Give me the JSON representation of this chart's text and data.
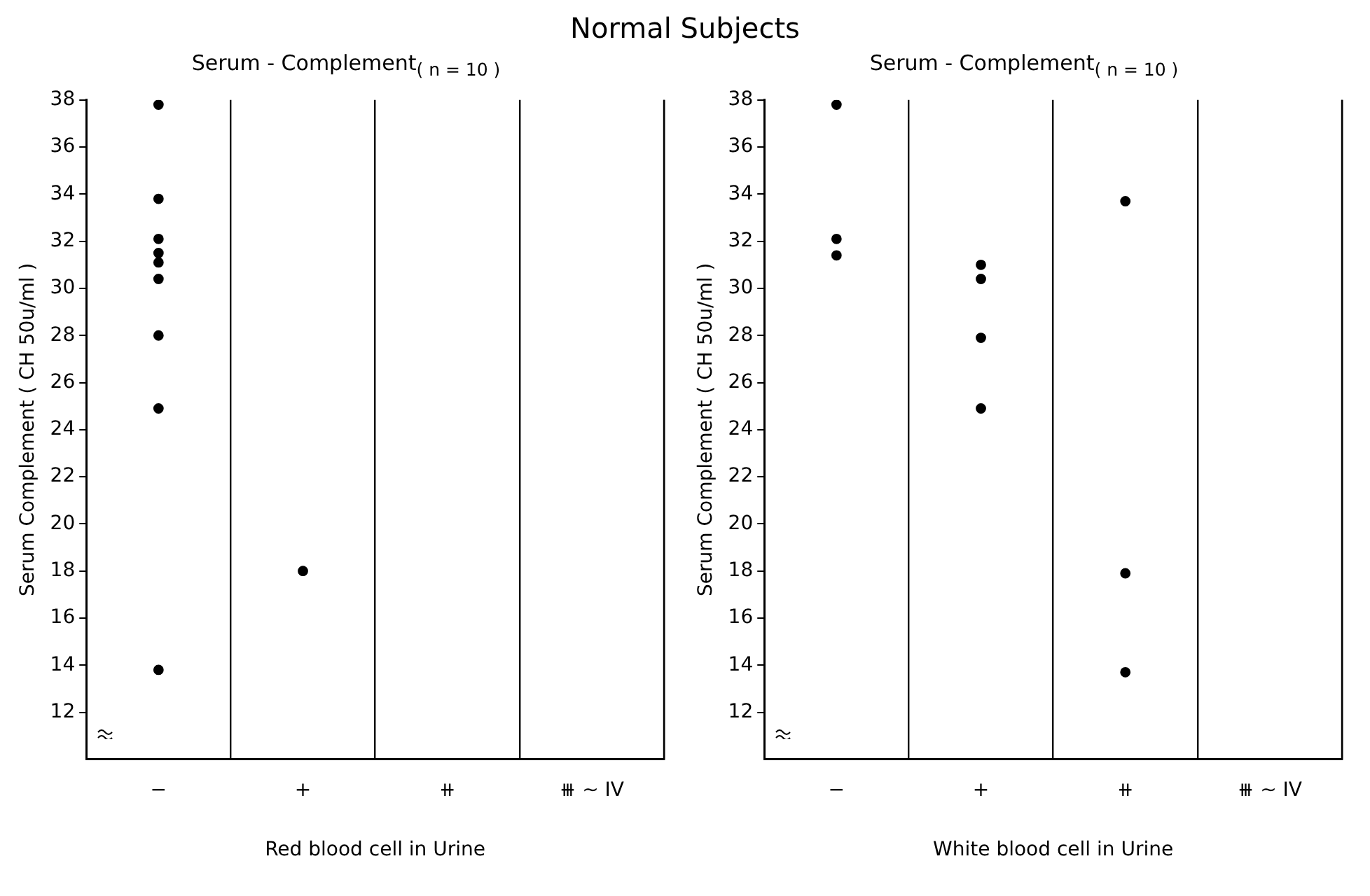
{
  "chart_data": [
    {
      "type": "scatter",
      "title": "Normal Subjects",
      "subtitle": "Serum - Complement$_{( n = 10 )}$",
      "xlabel": "Red blood cell in Urine",
      "ylabel": "Serum Complement ( CH 50u/ml )",
      "categories": [
        "−",
        "+",
        "⧺",
        "⧻ ~ IV"
      ],
      "series": [
        {
          "color": "#000000",
          "x": [
            "−",
            "−",
            "−",
            "−",
            "−",
            "−",
            "−",
            "−",
            "−",
            "+"
          ],
          "values": [
            37.8,
            33.8,
            32.1,
            31.5,
            31.1,
            30.4,
            28.0,
            24.9,
            13.8,
            18.0
          ]
        }
      ],
      "ylim": [
        10,
        38
      ],
      "yticks": [
        12,
        14,
        16,
        18,
        20,
        22,
        24,
        26,
        28,
        30,
        32,
        34,
        36,
        38
      ],
      "grid": "x",
      "marker": "circle"
    },
    {
      "type": "scatter",
      "subtitle": "Serum - Complement$_{( n = 10 )}$",
      "xlabel": "White blood cell in Urine",
      "ylabel": "Serum Complement ( CH 50u/ml )",
      "categories": [
        "−",
        "+",
        "⧺",
        "⧻ ~ IV"
      ],
      "series": [
        {
          "color": "#000000",
          "x": [
            "−",
            "−",
            "−",
            "+",
            "+",
            "+",
            "+",
            "⧺",
            "⧺",
            "⧺"
          ],
          "values": [
            37.8,
            32.1,
            31.4,
            31.0,
            30.4,
            27.9,
            24.9,
            33.7,
            17.9,
            13.7
          ]
        }
      ],
      "ylim": [
        10,
        38
      ],
      "yticks": [
        12,
        14,
        16,
        18,
        20,
        22,
        24,
        26,
        28,
        30,
        32,
        34,
        36,
        38
      ],
      "grid": "x",
      "marker": "circle"
    }
  ]
}
